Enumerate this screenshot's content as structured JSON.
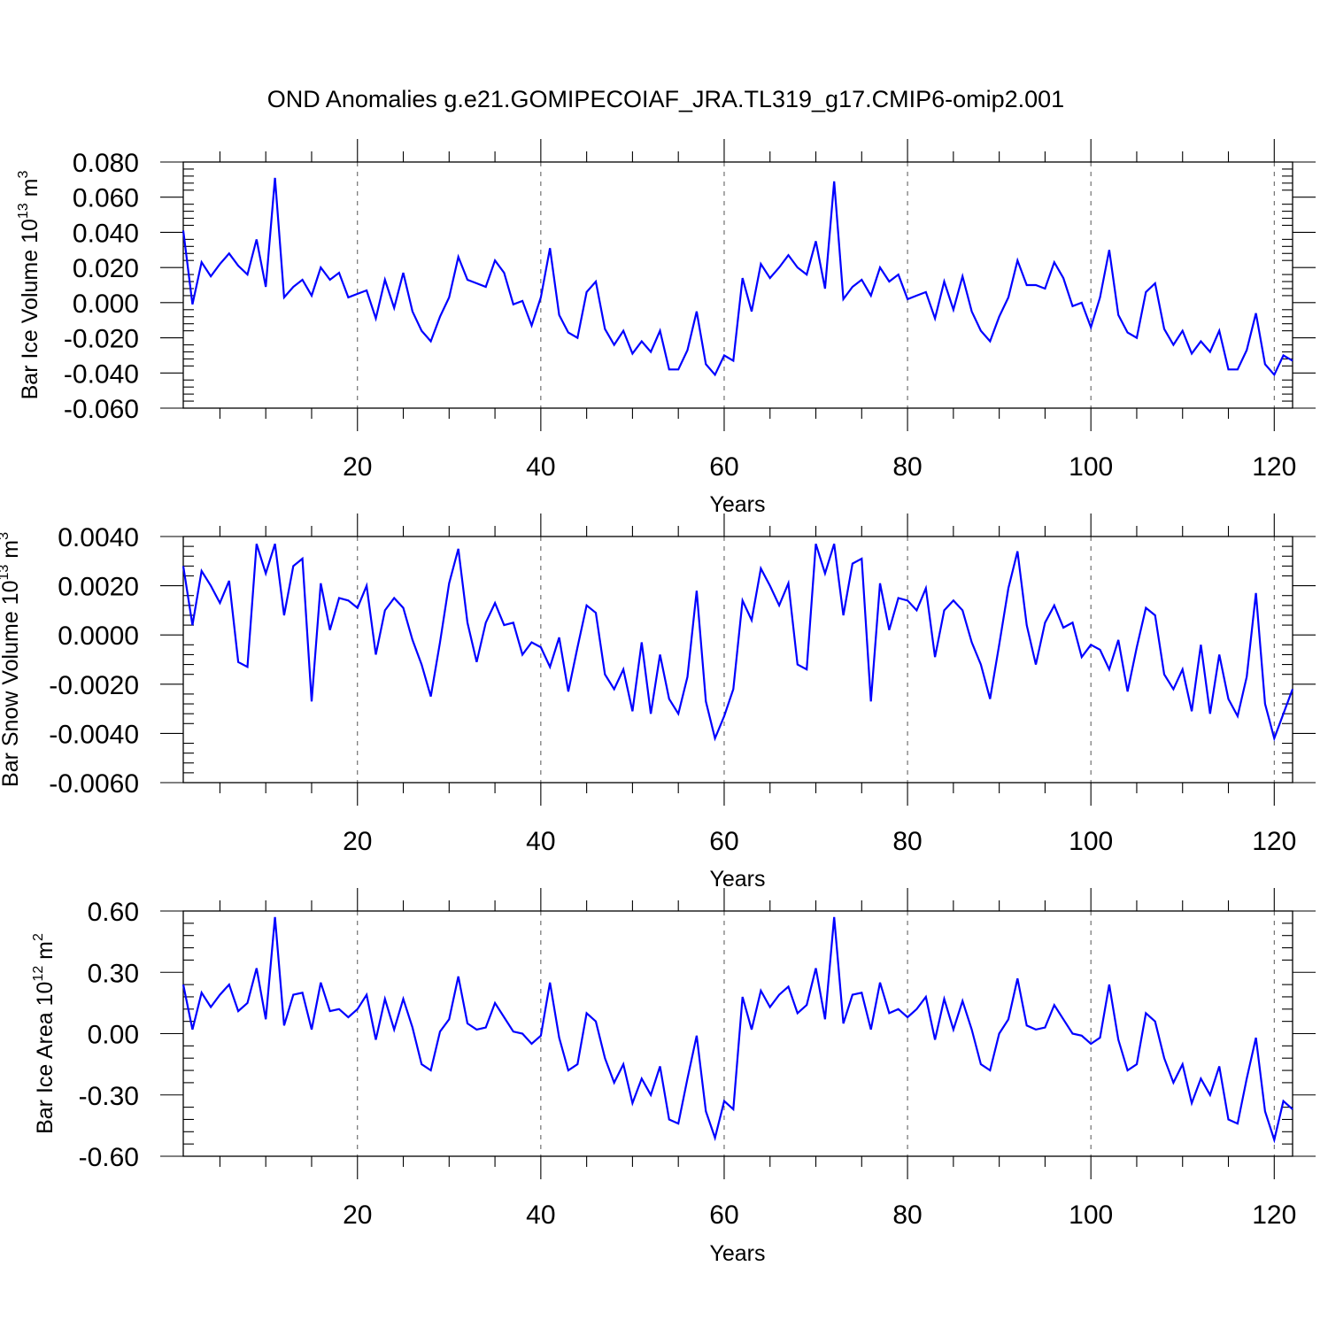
{
  "title": "OND Anomalies g.e21.GOMIPECOIAF_JRA.TL319_g17.CMIP6-omip2.001",
  "line_color": "#0000ff",
  "chart_data": [
    {
      "type": "line",
      "title": "OND Anomalies g.e21.GOMIPECOIAF_JRA.TL319_g17.CMIP6-omip2.001",
      "xlabel": "Years",
      "ylabel": {
        "text": "Bar Ice Volume 10",
        "sup": "13",
        "unit": " m",
        "unit_sup": "3"
      },
      "xlim": [
        1,
        122
      ],
      "ylim": [
        -0.06,
        0.08
      ],
      "xticks": [
        20,
        40,
        60,
        80,
        100,
        120
      ],
      "xtick_labels": [
        "20",
        "40",
        "60",
        "80",
        "100",
        "120"
      ],
      "yticks": [
        -0.06,
        -0.04,
        -0.02,
        0.0,
        0.02,
        0.04,
        0.06,
        0.08
      ],
      "ytick_labels": [
        "-0.060",
        "-0.040",
        "-0.020",
        "0.000",
        "0.020",
        "0.040",
        "0.060",
        "0.080"
      ],
      "grid": "vertical dashed at x ticks",
      "series": [
        {
          "name": "Bar Ice Volume",
          "x_start": 1,
          "values": [
            0.041,
            -0.001,
            0.023,
            0.015,
            0.022,
            0.028,
            0.021,
            0.016,
            0.036,
            0.009,
            0.071,
            0.003,
            0.009,
            0.013,
            0.004,
            0.02,
            0.013,
            0.017,
            0.003,
            0.005,
            0.007,
            -0.009,
            0.013,
            -0.003,
            0.017,
            -0.005,
            -0.016,
            -0.022,
            -0.008,
            0.003,
            0.026,
            0.013,
            0.011,
            0.009,
            0.024,
            0.017,
            -0.001,
            0.001,
            -0.013,
            0.003,
            0.031,
            -0.007,
            -0.017,
            -0.02,
            0.006,
            0.012,
            -0.015,
            -0.024,
            -0.016,
            -0.029,
            -0.022,
            -0.028,
            -0.016,
            -0.038,
            -0.038,
            -0.027,
            -0.005,
            -0.035,
            -0.041,
            -0.03,
            -0.033,
            0.014,
            -0.005,
            0.022,
            0.014,
            0.02,
            0.027,
            0.02,
            0.016,
            0.035,
            0.008,
            0.069,
            0.002,
            0.009,
            0.013,
            0.004,
            0.02,
            0.012,
            0.016,
            0.002,
            0.004,
            0.006,
            -0.009,
            0.012,
            -0.004,
            0.015,
            -0.005,
            -0.016,
            -0.022,
            -0.008,
            0.003,
            0.024,
            0.01,
            0.01,
            0.008,
            0.023,
            0.014,
            -0.002,
            0.0,
            -0.014,
            0.003,
            0.03,
            -0.007,
            -0.017,
            -0.02,
            0.006,
            0.011,
            -0.015,
            -0.024,
            -0.016,
            -0.029,
            -0.022,
            -0.028,
            -0.016,
            -0.038,
            -0.038,
            -0.027,
            -0.006,
            -0.035,
            -0.041,
            -0.03,
            -0.033
          ]
        }
      ]
    },
    {
      "type": "line",
      "xlabel": "Years",
      "ylabel": {
        "text": "Bar Snow Volume 10",
        "sup": "13",
        "unit": " m",
        "unit_sup": "3"
      },
      "xlim": [
        1,
        122
      ],
      "ylim": [
        -0.006,
        0.004
      ],
      "xticks": [
        20,
        40,
        60,
        80,
        100,
        120
      ],
      "xtick_labels": [
        "20",
        "40",
        "60",
        "80",
        "100",
        "120"
      ],
      "yticks": [
        -0.006,
        -0.004,
        -0.002,
        0.0,
        0.002,
        0.004
      ],
      "ytick_labels": [
        "-0.0060",
        "-0.0040",
        "-0.0020",
        "0.0000",
        "0.0020",
        "0.0040"
      ],
      "grid": "vertical dashed at x ticks",
      "series": [
        {
          "name": "Bar Snow Volume",
          "x_start": 1,
          "values": [
            0.0028,
            0.0004,
            0.0026,
            0.002,
            0.0013,
            0.0022,
            -0.0011,
            -0.0013,
            0.0037,
            0.0025,
            0.0037,
            0.0008,
            0.0028,
            0.0031,
            -0.0027,
            0.0021,
            0.0002,
            0.0015,
            0.0014,
            0.0011,
            0.002,
            -0.0008,
            0.001,
            0.0015,
            0.0011,
            -0.0002,
            -0.0012,
            -0.0025,
            -0.0003,
            0.0021,
            0.0035,
            0.0005,
            -0.0011,
            0.0005,
            0.0013,
            0.0004,
            0.0005,
            -0.0008,
            -0.0003,
            -0.0005,
            -0.0013,
            -0.0001,
            -0.0023,
            -0.0005,
            0.0012,
            0.0009,
            -0.0016,
            -0.0022,
            -0.0014,
            -0.0031,
            -0.0003,
            -0.0032,
            -0.0008,
            -0.0026,
            -0.0032,
            -0.0017,
            0.0018,
            -0.0027,
            -0.0042,
            -0.0033,
            -0.0022,
            0.0014,
            0.0006,
            0.0027,
            0.002,
            0.0012,
            0.0021,
            -0.0012,
            -0.0014,
            0.0037,
            0.0025,
            0.0037,
            0.0008,
            0.0029,
            0.0031,
            -0.0027,
            0.0021,
            0.0002,
            0.0015,
            0.0014,
            0.001,
            0.0019,
            -0.0009,
            0.001,
            0.0014,
            0.001,
            -0.0003,
            -0.0012,
            -0.0026,
            -0.0004,
            0.0019,
            0.0034,
            0.0004,
            -0.0012,
            0.0005,
            0.0012,
            0.0003,
            0.0005,
            -0.0009,
            -0.0004,
            -0.0006,
            -0.0014,
            -0.0002,
            -0.0023,
            -0.0005,
            0.0011,
            0.0008,
            -0.0016,
            -0.0022,
            -0.0014,
            -0.0031,
            -0.0004,
            -0.0032,
            -0.0008,
            -0.0026,
            -0.0033,
            -0.0017,
            0.0017,
            -0.0028,
            -0.0042,
            -0.0032,
            -0.0022
          ]
        }
      ]
    },
    {
      "type": "line",
      "xlabel": "Years",
      "ylabel": {
        "text": "Bar Ice Area 10",
        "sup": "12",
        "unit": " m",
        "unit_sup": "2"
      },
      "xlim": [
        1,
        122
      ],
      "ylim": [
        -0.6,
        0.6
      ],
      "xticks": [
        20,
        40,
        60,
        80,
        100,
        120
      ],
      "xtick_labels": [
        "20",
        "40",
        "60",
        "80",
        "100",
        "120"
      ],
      "yticks": [
        -0.6,
        -0.3,
        0.0,
        0.3,
        0.6
      ],
      "ytick_labels": [
        "-0.60",
        "-0.30",
        "0.00",
        "0.30",
        "0.60"
      ],
      "grid": "vertical dashed at x ticks",
      "series": [
        {
          "name": "Bar Ice Area",
          "x_start": 1,
          "values": [
            0.24,
            0.02,
            0.2,
            0.13,
            0.19,
            0.24,
            0.11,
            0.15,
            0.32,
            0.07,
            0.57,
            0.04,
            0.19,
            0.2,
            0.02,
            0.25,
            0.11,
            0.12,
            0.08,
            0.12,
            0.19,
            -0.03,
            0.17,
            0.02,
            0.17,
            0.03,
            -0.15,
            -0.18,
            0.01,
            0.07,
            0.28,
            0.05,
            0.02,
            0.03,
            0.15,
            0.08,
            0.01,
            0.0,
            -0.05,
            -0.01,
            0.25,
            -0.02,
            -0.18,
            -0.15,
            0.1,
            0.06,
            -0.12,
            -0.24,
            -0.15,
            -0.34,
            -0.22,
            -0.3,
            -0.16,
            -0.42,
            -0.44,
            -0.22,
            -0.01,
            -0.38,
            -0.51,
            -0.33,
            -0.37,
            0.18,
            0.02,
            0.21,
            0.13,
            0.19,
            0.23,
            0.1,
            0.14,
            0.32,
            0.07,
            0.57,
            0.05,
            0.19,
            0.2,
            0.02,
            0.25,
            0.1,
            0.12,
            0.08,
            0.12,
            0.18,
            -0.03,
            0.17,
            0.02,
            0.16,
            0.02,
            -0.15,
            -0.18,
            0.0,
            0.07,
            0.27,
            0.04,
            0.02,
            0.03,
            0.14,
            0.07,
            0.0,
            -0.01,
            -0.05,
            -0.02,
            0.24,
            -0.03,
            -0.18,
            -0.15,
            0.1,
            0.06,
            -0.12,
            -0.24,
            -0.15,
            -0.34,
            -0.22,
            -0.3,
            -0.16,
            -0.42,
            -0.44,
            -0.22,
            -0.02,
            -0.38,
            -0.52,
            -0.33,
            -0.37
          ]
        }
      ]
    }
  ]
}
